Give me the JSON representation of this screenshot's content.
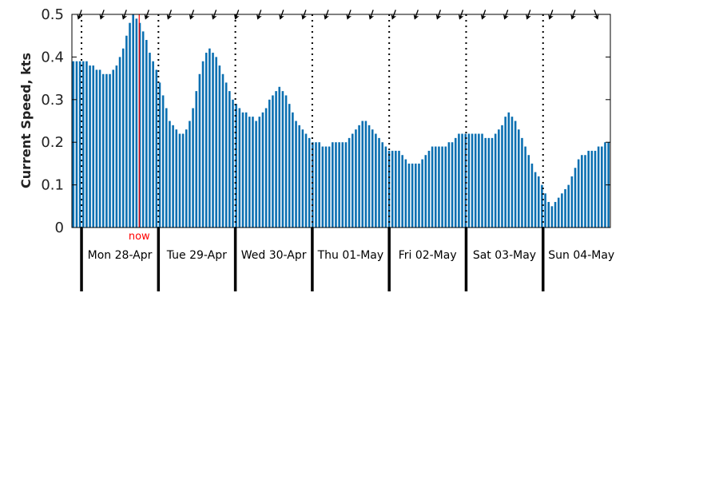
{
  "chart_data": {
    "type": "bar",
    "ylabel": "Current Speed, kts",
    "ylim": [
      0,
      0.5
    ],
    "yticks": [
      0,
      0.1,
      0.2,
      0.3,
      0.4,
      0.5
    ],
    "ytick_labels": [
      "0",
      "0.1",
      "0.2",
      "0.3",
      "0.4",
      "0.5"
    ],
    "x_start": "2025-04-27T21:00",
    "x_end": "2025-05-04T21:00",
    "interval_hours": 1,
    "now": {
      "label": "now",
      "time": "2025-04-28T18:00"
    },
    "days": [
      {
        "label": "Mon 28-Apr",
        "midnight": "2025-04-28T00:00"
      },
      {
        "label": "Tue 29-Apr",
        "midnight": "2025-04-29T00:00"
      },
      {
        "label": "Wed 30-Apr",
        "midnight": "2025-04-30T00:00"
      },
      {
        "label": "Thu 01-May",
        "midnight": "2025-05-01T00:00"
      },
      {
        "label": "Fri 02-May",
        "midnight": "2025-05-02T00:00"
      },
      {
        "label": "Sat 03-May",
        "midnight": "2025-05-03T00:00"
      },
      {
        "label": "Sun 04-May",
        "midnight": "2025-05-04T00:00"
      }
    ],
    "arrow_direction_deg": [
      200,
      200,
      200,
      200,
      200,
      200,
      200,
      200,
      200,
      200,
      200,
      200,
      200,
      200,
      200,
      200,
      200,
      200,
      200,
      200,
      200,
      200,
      200,
      160
    ],
    "values": [
      0.39,
      0.39,
      0.39,
      0.39,
      0.39,
      0.38,
      0.38,
      0.37,
      0.37,
      0.36,
      0.36,
      0.36,
      0.37,
      0.38,
      0.4,
      0.42,
      0.45,
      0.48,
      0.5,
      0.49,
      0.48,
      0.46,
      0.44,
      0.41,
      0.39,
      0.37,
      0.34,
      0.31,
      0.28,
      0.25,
      0.24,
      0.23,
      0.22,
      0.22,
      0.23,
      0.25,
      0.28,
      0.32,
      0.36,
      0.39,
      0.41,
      0.42,
      0.41,
      0.4,
      0.38,
      0.36,
      0.34,
      0.32,
      0.3,
      0.29,
      0.28,
      0.27,
      0.27,
      0.26,
      0.26,
      0.25,
      0.26,
      0.27,
      0.28,
      0.3,
      0.31,
      0.32,
      0.33,
      0.32,
      0.31,
      0.29,
      0.27,
      0.25,
      0.24,
      0.23,
      0.22,
      0.21,
      0.2,
      0.2,
      0.2,
      0.19,
      0.19,
      0.19,
      0.2,
      0.2,
      0.2,
      0.2,
      0.2,
      0.21,
      0.22,
      0.23,
      0.24,
      0.25,
      0.25,
      0.24,
      0.23,
      0.22,
      0.21,
      0.2,
      0.19,
      0.18,
      0.18,
      0.18,
      0.18,
      0.17,
      0.16,
      0.15,
      0.15,
      0.15,
      0.15,
      0.16,
      0.17,
      0.18,
      0.19,
      0.19,
      0.19,
      0.19,
      0.19,
      0.2,
      0.2,
      0.21,
      0.22,
      0.22,
      0.22,
      0.22,
      0.22,
      0.22,
      0.22,
      0.22,
      0.21,
      0.21,
      0.21,
      0.22,
      0.23,
      0.24,
      0.26,
      0.27,
      0.26,
      0.25,
      0.23,
      0.21,
      0.19,
      0.17,
      0.15,
      0.13,
      0.12,
      0.1,
      0.08,
      0.06,
      0.05,
      0.06,
      0.07,
      0.08,
      0.09,
      0.1,
      0.12,
      0.14,
      0.16,
      0.17,
      0.17,
      0.18,
      0.18,
      0.18,
      0.19,
      0.19,
      0.2,
      0.2
    ],
    "colors": {
      "bar": "#0a6fb1",
      "now": "#ff0000",
      "axis": "#000000"
    }
  }
}
